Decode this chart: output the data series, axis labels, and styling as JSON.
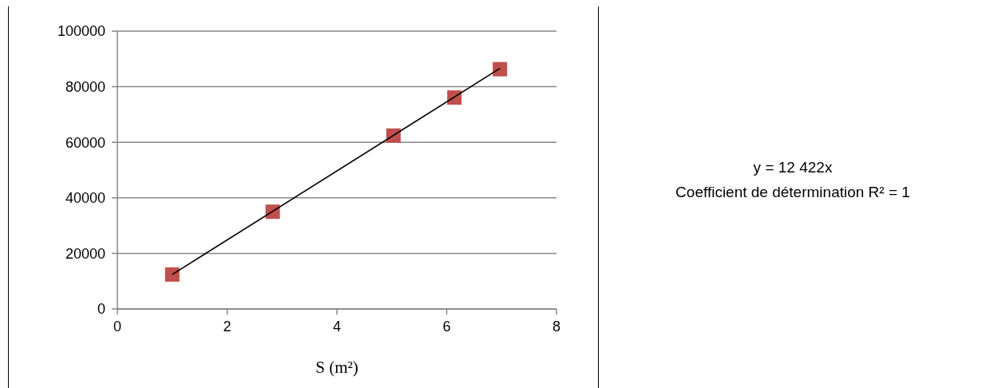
{
  "chart_data": {
    "type": "scatter",
    "xlabel": "S (m²)",
    "xlim": [
      0,
      8
    ],
    "xticks": [
      0,
      2,
      4,
      6,
      8
    ],
    "ylim": [
      0,
      100000
    ],
    "yticks": [
      0,
      20000,
      40000,
      60000,
      80000,
      100000
    ],
    "grid": "y",
    "marker": "square",
    "series": [
      {
        "color": "#c0504d",
        "x": [
          1,
          2.83,
          5.03,
          6.14,
          6.97
        ],
        "values": [
          12400,
          35000,
          62400,
          76100,
          86300
        ]
      },
      {
        "type": "line",
        "color": "#000000",
        "line_style": "solid",
        "marker": "none",
        "x": [
          1,
          6.97
        ],
        "values": [
          12400,
          86600
        ]
      }
    ],
    "annotations": [
      "y = 12 422x",
      "Coefficient de détermination R² = 1"
    ]
  }
}
